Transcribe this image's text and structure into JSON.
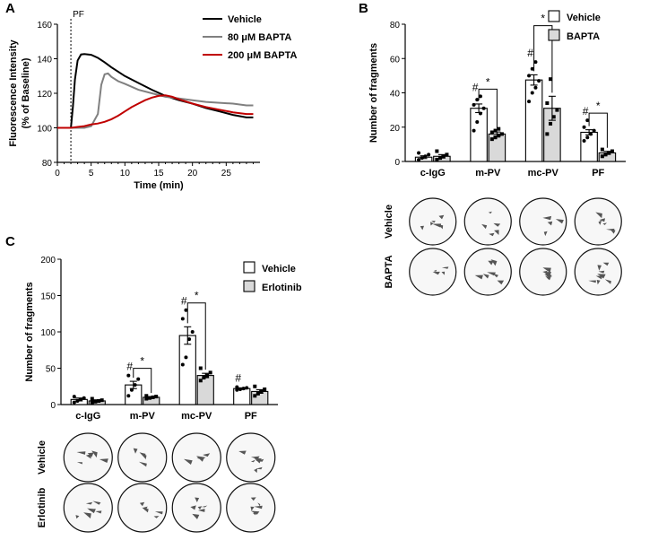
{
  "panel_labels": [
    "A",
    "B",
    "C"
  ],
  "chart_data": [
    {
      "panel": "A",
      "type": "line",
      "ylabel": "Fluorescence Intensity",
      "ylabel2": "(% of Baseline)",
      "xlabel": "Time (min)",
      "xlim": [
        0,
        30
      ],
      "ylim": [
        80,
        160
      ],
      "xticks": [
        0,
        5,
        10,
        15,
        20,
        25
      ],
      "yticks": [
        80,
        100,
        120,
        140,
        160
      ],
      "annotation": {
        "label": "PF",
        "x": 2
      },
      "series": [
        {
          "name": "Vehicle",
          "color": "#000000",
          "x": [
            0,
            2,
            2.3,
            2.6,
            3,
            3.5,
            4,
            5,
            6,
            7,
            8,
            10,
            12,
            14,
            16,
            18,
            20,
            22,
            24,
            26,
            28,
            29
          ],
          "y": [
            100,
            100,
            112,
            128,
            139,
            142.5,
            142.7,
            142.3,
            140.5,
            138,
            135,
            130,
            126,
            122,
            118.5,
            116,
            114,
            111.5,
            109.5,
            107.5,
            106,
            106
          ]
        },
        {
          "name": "80 μM BAPTA",
          "color": "#808080",
          "x": [
            0,
            2,
            4,
            5,
            6,
            6.5,
            7,
            7.5,
            8,
            9,
            10,
            12,
            14,
            16,
            18,
            20,
            22,
            24,
            26,
            28,
            29
          ],
          "y": [
            100,
            100,
            100,
            101,
            108,
            125,
            131,
            131.5,
            129.5,
            127,
            125.5,
            122,
            120,
            118,
            117,
            116,
            115,
            114.5,
            114,
            113,
            113
          ]
        },
        {
          "name": "200 μM BAPTA",
          "color": "#c00000",
          "x": [
            0,
            2,
            3,
            4,
            5,
            6,
            7,
            8,
            9,
            10,
            11,
            12,
            13,
            14,
            15,
            16,
            17,
            18,
            20,
            22,
            24,
            26,
            28,
            29
          ],
          "y": [
            100,
            100,
            100.5,
            101,
            102,
            102.5,
            103.5,
            105,
            107,
            109.5,
            112,
            114,
            116,
            117.5,
            118.5,
            118.8,
            118,
            116.5,
            114,
            112,
            110.5,
            109,
            108,
            108
          ]
        }
      ]
    },
    {
      "panel": "B",
      "type": "bar",
      "ylabel": "Number of fragments",
      "ylim": [
        0,
        80
      ],
      "yticks": [
        0,
        20,
        40,
        60,
        80
      ],
      "categories": [
        "c-IgG",
        "m-PV",
        "mc-PV",
        "PF"
      ],
      "series": [
        {
          "name": "Vehicle",
          "fill": "#ffffff",
          "values": [
            2.5,
            31,
            47.5,
            17
          ],
          "errors": [
            0.8,
            2.5,
            3.0,
            1.5
          ],
          "points": [
            [
              1,
              2,
              3,
              4,
              5
            ],
            [
              18,
              23,
              28,
              31,
              33,
              36,
              38
            ],
            [
              35,
              40,
              43,
              47,
              50,
              54,
              58
            ],
            [
              12,
              14,
              16,
              18,
              20,
              24
            ]
          ]
        },
        {
          "name": "BAPTA",
          "fill": "#d9d9d9",
          "values": [
            3,
            16,
            31,
            5
          ],
          "errors": [
            1.0,
            1.2,
            7.0,
            0.9
          ],
          "points": [
            [
              1,
              2,
              3,
              4,
              6
            ],
            [
              13,
              14,
              15,
              16,
              17,
              18,
              19
            ],
            [
              16,
              22,
              26,
              30,
              34,
              48,
              75
            ],
            [
              3,
              4,
              5,
              6,
              7
            ]
          ]
        }
      ],
      "hash_marks": [
        1,
        2,
        3
      ],
      "significance": [
        1,
        2,
        3
      ],
      "significance_label": "*",
      "hash_label": "#",
      "image_rows": [
        "Vehicle",
        "BAPTA"
      ]
    },
    {
      "panel": "C",
      "type": "bar",
      "ylabel": "Number of fragments",
      "ylim": [
        0,
        200
      ],
      "yticks": [
        0,
        50,
        100,
        150,
        200
      ],
      "categories": [
        "c-IgG",
        "m-PV",
        "mc-PV",
        "PF"
      ],
      "series": [
        {
          "name": "Vehicle",
          "fill": "#ffffff",
          "values": [
            7,
            27,
            95,
            22
          ],
          "errors": [
            2,
            5,
            12,
            1
          ],
          "points": [
            [
              3,
              5,
              7,
              9,
              11
            ],
            [
              12,
              20,
              27,
              35,
              40
            ],
            [
              55,
              65,
              90,
              100,
              118,
              130
            ],
            [
              20,
              21,
              22,
              23,
              24
            ]
          ]
        },
        {
          "name": "Erlotinib",
          "fill": "#d9d9d9",
          "values": [
            5,
            10,
            40,
            18
          ],
          "errors": [
            1.5,
            1,
            3,
            2.5
          ],
          "points": [
            [
              2,
              4,
              5,
              6,
              8
            ],
            [
              8,
              9,
              10,
              11,
              12
            ],
            [
              33,
              37,
              40,
              44,
              50
            ],
            [
              12,
              15,
              18,
              21,
              25
            ]
          ]
        }
      ],
      "hash_marks": [
        1,
        2,
        3
      ],
      "significance": [
        1,
        2
      ],
      "significance_label": "*",
      "hash_label": "#",
      "image_rows": [
        "Vehicle",
        "Erlotinib"
      ]
    }
  ]
}
